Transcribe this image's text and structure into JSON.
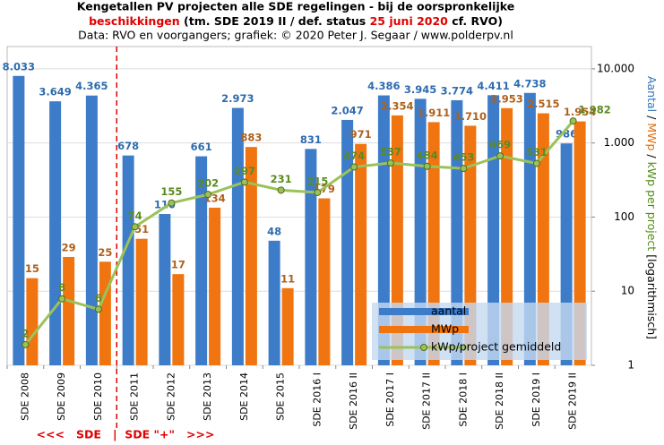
{
  "chart_data": {
    "type": "bar",
    "title": "Kengetallen  PV projecten alle SDE regelingen - bij de oorspronkelijke",
    "title_line2": [
      {
        "text": "beschikkingen",
        "color": "#e00000"
      },
      {
        "text": " (tm. SDE 2019 II / def. status ",
        "color": "#000000"
      },
      {
        "text": "25 juni 2020",
        "color": "#e00000"
      },
      {
        "text": " cf. RVO)",
        "color": "#000000"
      }
    ],
    "subtitle": "Data: RVO en voorgangers;  grafiek: © 2020 Peter J. Segaar / www.polderpv.nl",
    "y_label": [
      {
        "text": "Aantal",
        "color": "#2e75b6"
      },
      {
        "text": " / ",
        "color": "#000000"
      },
      {
        "text": "MWp",
        "color": "#e36c09"
      },
      {
        "text": " / ",
        "color": "#000000"
      },
      {
        "text": "kWp per project",
        "color": "#4f8a10"
      },
      {
        "text": " [logarithmisch]",
        "color": "#000000"
      }
    ],
    "annotation": "<<<   SDE   |  SDE \"+\"   >>>",
    "categories": [
      "SDE 2008",
      "SDE 2009",
      "SDE 2010",
      "SDE 2011",
      "SDE 2012",
      "SDE 2013",
      "SDE 2014",
      "SDE 2015",
      "SDE 2016 I",
      "SDE 2016 II",
      "SDE 2017 I",
      "SDE 2017 II",
      "SDE 2018 I",
      "SDE 2018 II",
      "SDE 2019 I",
      "SDE 2019 II"
    ],
    "series": [
      {
        "name": "aantal",
        "color": "#3d7cc9",
        "label_color": "#2e6bb0",
        "kind": "bar",
        "values": [
          8033,
          3649,
          4365,
          678,
          110,
          661,
          2973,
          48,
          831,
          2047,
          4386,
          3945,
          3774,
          4411,
          4738,
          986
        ],
        "value_labels": [
          "8.033",
          "3.649",
          "4.365",
          "678",
          "110",
          "661",
          "2.973",
          "48",
          "831",
          "2.047",
          "4.386",
          "3.945",
          "3.774",
          "4.411",
          "4.738",
          "986"
        ]
      },
      {
        "name": "MWp",
        "color": "#f07410",
        "label_color": "#b0601a",
        "kind": "bar",
        "values": [
          15,
          29,
          25,
          51,
          17,
          134,
          883,
          11,
          179,
          971,
          2354,
          1911,
          1710,
          2953,
          2515,
          1954
        ],
        "value_labels": [
          "15",
          "29",
          "25",
          "51",
          "17",
          "134",
          "883",
          "11",
          "179",
          "971",
          "2.354",
          "1.911",
          "1.710",
          "2.953",
          "2.515",
          "1.954"
        ]
      },
      {
        "name": "kWp/project gemiddeld",
        "color": "#9bc25a",
        "label_color": "#5a8a1e",
        "kind": "line",
        "values": [
          1.9,
          7.9,
          5.7,
          74,
          155,
          202,
          297,
          231,
          215,
          474,
          537,
          484,
          453,
          669,
          531,
          1982
        ],
        "value_labels": [
          "2",
          "8",
          "6",
          "74",
          "155",
          "202",
          "297",
          "231",
          "215",
          "474",
          "537",
          "484",
          "453",
          "669",
          "531",
          "1.982"
        ]
      }
    ],
    "log_scale": true,
    "ylim": [
      1,
      20000
    ],
    "yticks": [
      1,
      10,
      100,
      {
        "value": 1000,
        "label": "1.000"
      },
      {
        "value": 10000,
        "label": "10.000"
      }
    ],
    "grid": true,
    "legend": "lower right",
    "divider_after": 2
  }
}
